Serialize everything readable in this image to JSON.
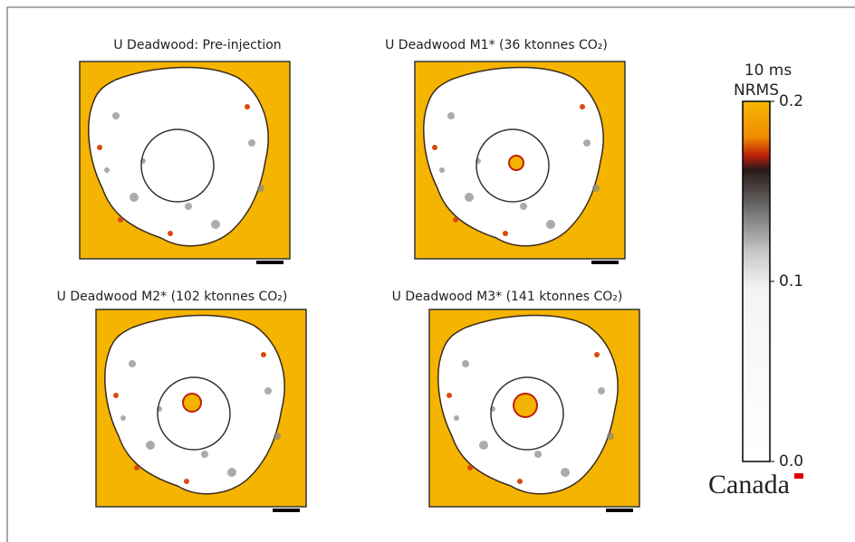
{
  "panels": [
    {
      "title": "U Deadwood: Pre-injection"
    },
    {
      "title": "U Deadwood M1* (36 ktonnes CO₂)"
    },
    {
      "title": "U Deadwood M2* (102 ktonnes CO₂)"
    },
    {
      "title": "U Deadwood M3* (141 ktonnes CO₂)"
    }
  ],
  "colorbar": {
    "title": "10 ms",
    "label": "NRMS",
    "lim": [
      0,
      0.2
    ],
    "ticks": [
      0.2,
      0.1,
      {
        "value": 0,
        "label": "0.0"
      }
    ]
  },
  "logo": "Canada"
}
